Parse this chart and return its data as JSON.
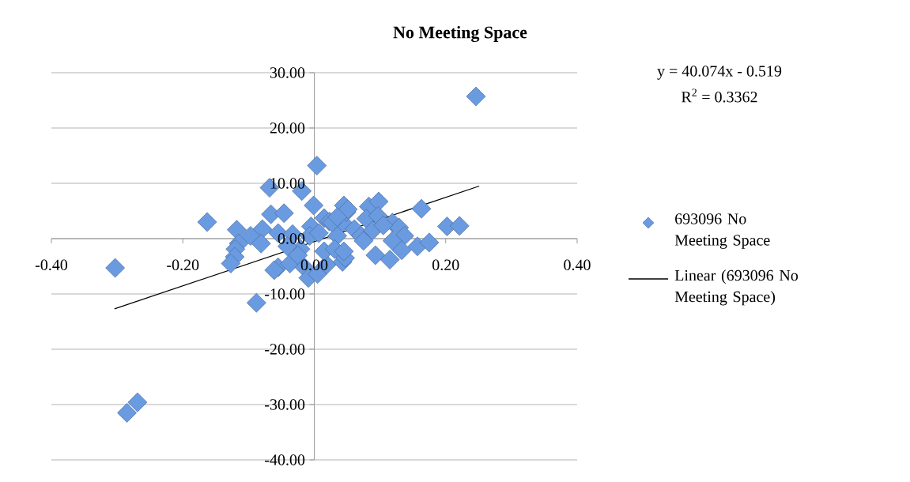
{
  "chart_data": {
    "type": "scatter",
    "title": "No Meeting Space",
    "annotations": [
      "y = 40.074x - 0.519",
      "R$^{2}$ = 0.3362"
    ],
    "xlim": [
      -0.4,
      0.4
    ],
    "ylim": [
      -40,
      30
    ],
    "xticks": [
      {
        "value": -0.4,
        "label": "-0.40"
      },
      {
        "value": -0.2,
        "label": "-0.20"
      },
      {
        "value": 0,
        "label": "0.00"
      },
      {
        "value": 0.2,
        "label": "0.20"
      },
      {
        "value": 0.4,
        "label": "0.40"
      }
    ],
    "yticks": [
      {
        "value": -40,
        "label": "-40.00"
      },
      {
        "value": -30,
        "label": "-30.00"
      },
      {
        "value": -20,
        "label": "-20.00"
      },
      {
        "value": -10,
        "label": "-10.00"
      },
      {
        "value": 0,
        "label": "0.00"
      },
      {
        "value": 10,
        "label": "10.00"
      },
      {
        "value": 20,
        "label": "20.00"
      },
      {
        "value": 30,
        "label": "30.00"
      }
    ],
    "grid": "y",
    "legend": "right",
    "marker": "diamond",
    "series": [
      {
        "name": "693096 No Meeting Space",
        "color": "#6a9be0",
        "x": [
          -0.303,
          -0.163,
          -0.285,
          -0.269,
          -0.088,
          0.246,
          0.004,
          -0.068,
          -0.019,
          -0.001,
          -0.066,
          -0.046,
          0.015,
          -0.005,
          -0.118,
          -0.079,
          -0.097,
          -0.115,
          -0.12,
          -0.121,
          -0.127,
          -0.081,
          -0.055,
          -0.033,
          -0.021,
          -0.007,
          0.007,
          0.023,
          0.043,
          0.035,
          -0.055,
          -0.037,
          -0.025,
          -0.015,
          -0.009,
          0.005,
          0.019,
          -0.041,
          0.015,
          0.031,
          0.043,
          0.045,
          0.049,
          0.083,
          0.098,
          0.163,
          0.202,
          0.221,
          0.079,
          0.097,
          0.119,
          0.129,
          0.137,
          0.119,
          0.157,
          0.175,
          0.133,
          0.093,
          0.115,
          0.047,
          0.045,
          0.061,
          0.071,
          0.089,
          0.105,
          0.075,
          0.027,
          0.051,
          0.035,
          -0.061
        ],
        "values": [
          -5.3,
          3.0,
          -31.5,
          -29.6,
          -11.6,
          25.7,
          13.2,
          9.2,
          8.6,
          6.0,
          4.4,
          4.6,
          3.7,
          2.2,
          1.6,
          1.7,
          0.5,
          -0.9,
          -1.9,
          -3.3,
          -4.5,
          -0.9,
          1.0,
          0.8,
          -1.9,
          0.5,
          1.0,
          3.1,
          2.9,
          0.5,
          -5.2,
          -4.5,
          -3.0,
          -5.2,
          -7.1,
          -6.4,
          -4.7,
          -1.4,
          -2.3,
          -1.9,
          -4.2,
          6.0,
          4.8,
          5.8,
          6.7,
          5.4,
          2.2,
          2.3,
          3.6,
          4.1,
          2.9,
          2.0,
          0.5,
          -0.4,
          -1.4,
          -0.7,
          -2.1,
          -3.0,
          -3.8,
          -3.5,
          -2.3,
          1.7,
          0.5,
          1.5,
          2.4,
          -0.4,
          2.9,
          5.3,
          3.9,
          -5.7
        ]
      },
      {
        "name": "Linear (693096 No Meeting Space)",
        "type": "line",
        "color": "#000000",
        "marker": "none",
        "line_style": "solid",
        "x": [
          -0.304,
          0.251
        ],
        "values": [
          -12.7,
          9.5
        ]
      }
    ]
  }
}
